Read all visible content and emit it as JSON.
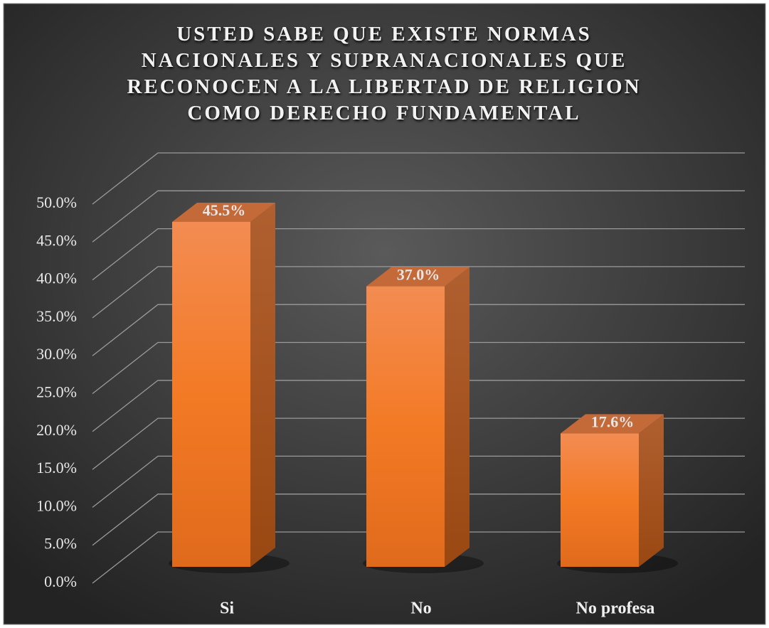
{
  "chart_data": {
    "type": "bar3d",
    "title": "USTED SABE QUE EXISTE NORMAS NACIONALES Y SUPRANACIONALES QUE RECONOCEN A LA LIBERTAD DE RELIGION COMO DERECHO FUNDAMENTAL",
    "categories": [
      "Si",
      "No",
      "No profesa"
    ],
    "values": [
      45.5,
      37.0,
      17.6
    ],
    "value_labels": [
      "45.5%",
      "37.0%",
      "17.6%"
    ],
    "color": "#f07d2a",
    "ylim": [
      0,
      50
    ],
    "yticks": [
      {
        "value": 0,
        "label": "0.0%"
      },
      {
        "value": 5,
        "label": "5.0%"
      },
      {
        "value": 10,
        "label": "10.0%"
      },
      {
        "value": 15,
        "label": "15.0%"
      },
      {
        "value": 20,
        "label": "20.0%"
      },
      {
        "value": 25,
        "label": "25.0%"
      },
      {
        "value": 30,
        "label": "30.0%"
      },
      {
        "value": 35,
        "label": "35.0%"
      },
      {
        "value": 40,
        "label": "40.0%"
      },
      {
        "value": 45,
        "label": "45.0%"
      },
      {
        "value": 50,
        "label": "50.0%"
      }
    ],
    "grid": true
  }
}
